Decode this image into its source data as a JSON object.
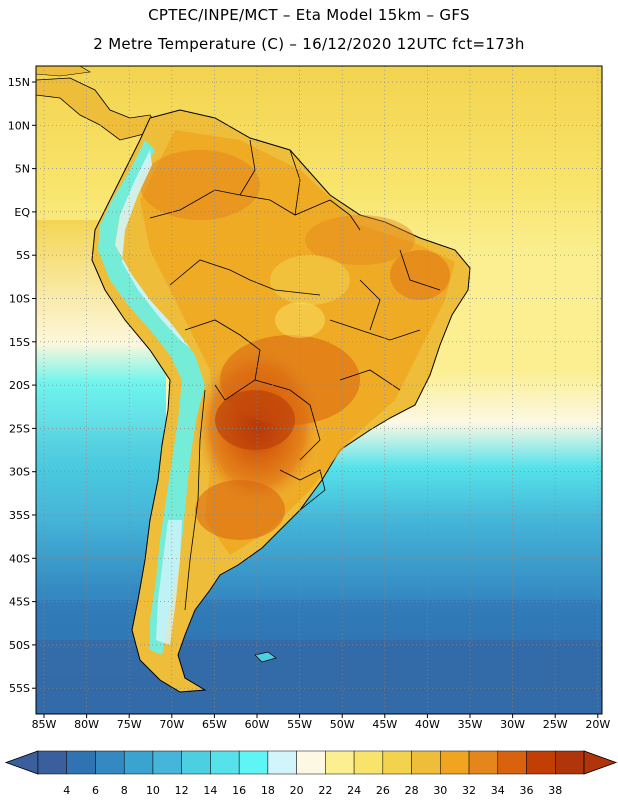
{
  "header": {
    "title_line1": "CPTEC/INPE/MCT –  Eta Model 15km – GFS",
    "title_line2": "2 Metre Temperature (C) – 16/12/2020 12UTC fct=173h"
  },
  "map": {
    "lat_labels": [
      "15N",
      "10N",
      "5N",
      "EQ",
      "5S",
      "10S",
      "15S",
      "20S",
      "25S",
      "30S",
      "35S",
      "40S",
      "45S",
      "50S",
      "55S"
    ],
    "lon_labels": [
      "85W",
      "80W",
      "75W",
      "70W",
      "65W",
      "60W",
      "55W",
      "50W",
      "45W",
      "40W",
      "35W",
      "30W",
      "25W",
      "20W"
    ]
  },
  "legend": {
    "ticks": [
      "4",
      "6",
      "8",
      "10",
      "12",
      "14",
      "16",
      "18",
      "20",
      "22",
      "24",
      "26",
      "28",
      "30",
      "32",
      "34",
      "36",
      "38"
    ],
    "colors": [
      "#3a5f9c",
      "#2f73b3",
      "#3489c2",
      "#3aa3cf",
      "#45b6d9",
      "#4ccfe0",
      "#55e2ea",
      "#5ff5f5",
      "#d2f4fb",
      "#fdf8e4",
      "#fbef92",
      "#f8e46a",
      "#f3d34e",
      "#eebe3b",
      "#f0a41f",
      "#e5861c",
      "#d8620e",
      "#c33e05",
      "#b0350b"
    ],
    "left_arrow_color": "#3a5f9c",
    "right_arrow_color": "#b0350b"
  }
}
